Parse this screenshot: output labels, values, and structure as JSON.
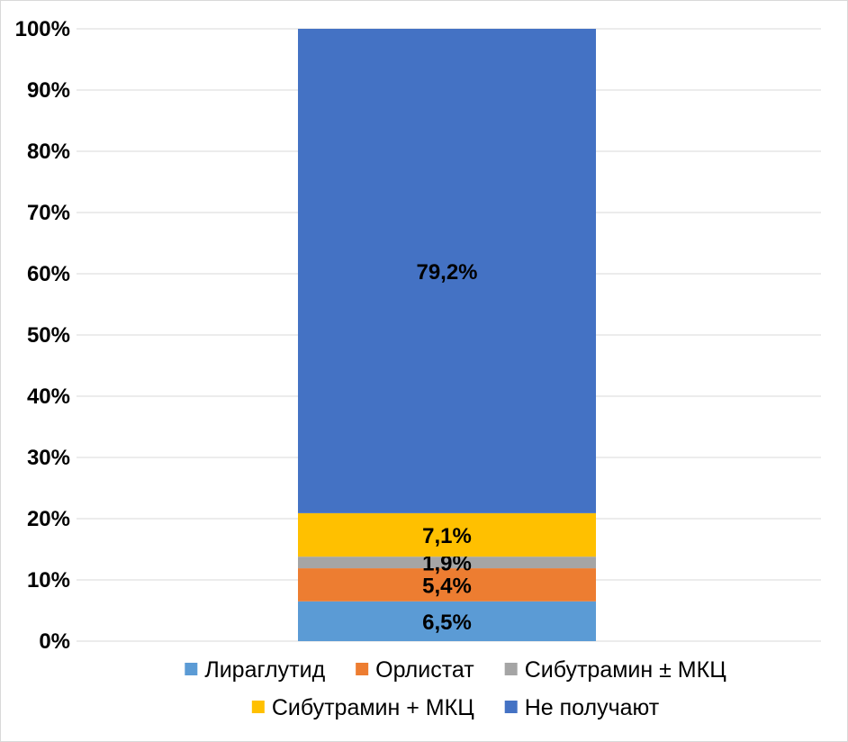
{
  "chart_data": {
    "type": "bar",
    "stacked": true,
    "title": "",
    "xlabel": "",
    "ylabel": "",
    "ylim": [
      0,
      100
    ],
    "yticks": [
      "0%",
      "10%",
      "20%",
      "30%",
      "40%",
      "50%",
      "60%",
      "70%",
      "80%",
      "90%",
      "100%"
    ],
    "grid": true,
    "legend_position": "bottom",
    "series": [
      {
        "name": "Лираглутид",
        "value": 6.5,
        "label": "6,5%",
        "color": "#5b9bd5"
      },
      {
        "name": "Орлистат",
        "value": 5.4,
        "label": "5,4%",
        "color": "#ed7d31"
      },
      {
        "name": "Сибутрамин ± МКЦ",
        "value": 1.9,
        "label": "1,9%",
        "color": "#a5a5a5"
      },
      {
        "name": "Сибутрамин + МКЦ",
        "value": 7.1,
        "label": "7,1%",
        "color": "#ffc000"
      },
      {
        "name": "Не получают",
        "value": 79.2,
        "label": "79,2%",
        "color": "#4472c4"
      }
    ]
  }
}
